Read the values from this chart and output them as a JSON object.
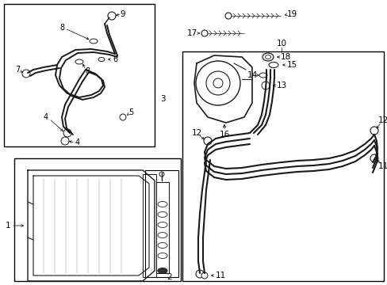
{
  "bg_color": "#ffffff",
  "lc": "#1a1a1a",
  "fig_width": 4.89,
  "fig_height": 3.6,
  "dpi": 100
}
